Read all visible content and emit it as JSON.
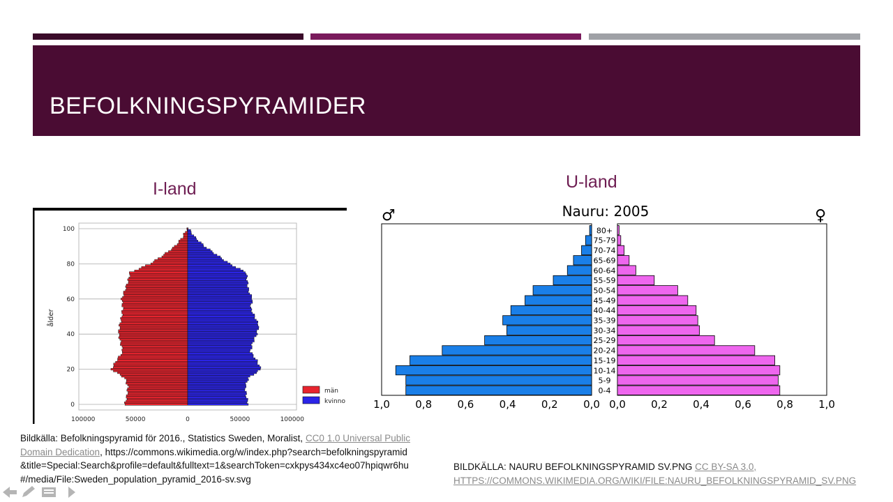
{
  "slide": {
    "title": "BEFOLKNINGSPYRAMIDER",
    "accent_colors": [
      "#3b0b2a",
      "#7a1b5c",
      "#9fa1a6"
    ]
  },
  "left": {
    "label": "I-land",
    "chart_data": {
      "type": "bar",
      "orientation": "horizontal-pyramid",
      "ylabel": "ålder",
      "y_ticks": [
        "0",
        "20",
        "40",
        "60",
        "80",
        "100"
      ],
      "x_ticks": [
        "100000",
        "50000",
        "0",
        "50000",
        "100000"
      ],
      "legend": [
        {
          "name": "män",
          "color": "#e8242e"
        },
        {
          "name": "kvinno",
          "color": "#2b24e8"
        }
      ],
      "legend_position": "bottom-right",
      "age_step": 5,
      "ages": [
        0,
        5,
        10,
        15,
        20,
        25,
        30,
        35,
        40,
        45,
        50,
        55,
        60,
        65,
        70,
        75,
        80,
        85,
        90,
        95,
        100
      ],
      "men": [
        60000,
        58000,
        57000,
        60000,
        73000,
        68000,
        62000,
        64000,
        66000,
        65000,
        63000,
        62000,
        63000,
        60000,
        57000,
        55000,
        36000,
        23000,
        12000,
        5000,
        500
      ],
      "women": [
        58000,
        56000,
        55000,
        58000,
        70000,
        66000,
        60000,
        62000,
        66000,
        68000,
        64000,
        60000,
        62000,
        58000,
        57000,
        56000,
        40000,
        28000,
        16000,
        7000,
        800
      ]
    }
  },
  "right": {
    "label": "U-land",
    "male_symbol": "♂",
    "female_symbol": "♀",
    "chart_data": {
      "type": "bar",
      "orientation": "horizontal-pyramid",
      "title": "Nauru: 2005",
      "categories": [
        "80+",
        "75-79",
        "70-74",
        "65-69",
        "60-64",
        "55-59",
        "50-54",
        "45-49",
        "40-44",
        "35-39",
        "30-34",
        "25-29",
        "20-24",
        "15-19",
        "10-14",
        "5-9",
        "0-4"
      ],
      "series": [
        {
          "name": "♂",
          "color": "#1a7fe8",
          "values": [
            0.01,
            0.03,
            0.05,
            0.09,
            0.12,
            0.19,
            0.29,
            0.33,
            0.4,
            0.44,
            0.42,
            0.53,
            0.74,
            0.9,
            0.97,
            0.92,
            0.92
          ]
        },
        {
          "name": "♀",
          "color": "#ee66ee",
          "values": [
            0.01,
            0.02,
            0.04,
            0.07,
            0.11,
            0.22,
            0.36,
            0.42,
            0.47,
            0.48,
            0.49,
            0.58,
            0.82,
            0.94,
            0.97,
            0.96,
            0.97
          ]
        }
      ],
      "x_ticks_left": [
        "1,0",
        "0,8",
        "0,6",
        "0,4",
        "0,2",
        "0,0"
      ],
      "x_ticks_right": [
        "0,0",
        "0,2",
        "0,4",
        "0,6",
        "0,8",
        "1,0"
      ],
      "xlim": [
        0,
        1.0
      ]
    }
  },
  "sources": {
    "left_prefix": "Bildkälla: Befolkningspyramid för 2016.,  Statistics Sweden, Moralist, ",
    "left_link1": "CC0 1.0 Universal Public Domain Dedication",
    "left_url": ",  https://commons.wikimedia.org/w/index.php?search=befolkningspyramid&title=Special:Search&profile=default&fulltext=1&searchToken=cxkpys434xc4eo07hpiqwr6hu#/media/File:Sweden_population_pyramid_2016-sv.svg",
    "right_prefix": "BILDKÄLLA: NAURU BEFOLKNINGSPYRAMID SV.PNG ",
    "right_link": "CC BY-SA 3.0, HTTPS://COMMONS.WIKIMEDIA.ORG/WIKI/FILE:NAURU_BEFOLKNINGSPYRAMID_SV.PNG"
  },
  "nav": {
    "back_icon": "arrow-left-icon",
    "edit_icon": "pencil-icon",
    "menu_icon": "menu-icon",
    "next_icon": "arrow-right-icon"
  }
}
